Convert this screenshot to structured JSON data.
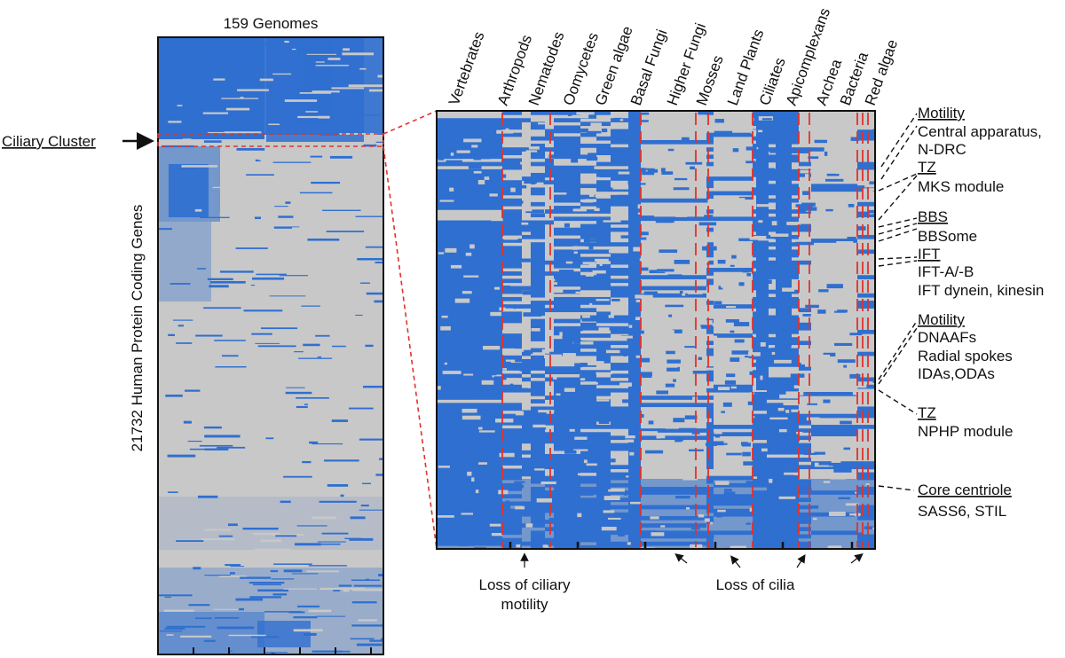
{
  "colors": {
    "present": "#2f6fd0",
    "absent": "#c8c8c8",
    "dash": "#e0322c",
    "text": "#111111"
  },
  "left_heatmap": {
    "title": "159 Genomes",
    "y_label": "21732 Human Protein Coding Genes",
    "cluster_label": "Ciliary Cluster"
  },
  "clades": [
    "Vertebrates",
    "Arthropods",
    "Nematodes",
    "Oomycetes",
    "Green algae",
    "Basal Fungi",
    "Higher Fungi",
    "Mosses",
    "Land Plants",
    "Ciliates",
    "Apicomplexans",
    "Archea",
    "Bacteria",
    "Red algae"
  ],
  "annotations": [
    {
      "header": "Motility",
      "lines": [
        "Central apparatus,",
        "N-DRC"
      ]
    },
    {
      "header": "TZ",
      "lines": [
        "MKS module"
      ]
    },
    {
      "header": "BBS",
      "lines": [
        "BBSome"
      ]
    },
    {
      "header": "IFT",
      "lines": [
        "IFT-A/-B",
        "IFT dynein, kinesin"
      ]
    },
    {
      "header": "Motility",
      "lines": [
        "DNAAFs",
        "Radial spokes",
        "IDAs,ODAs"
      ]
    },
    {
      "header": "TZ",
      "lines": [
        "NPHP module"
      ]
    },
    {
      "header": "Core centriole",
      "lines": [
        "SASS6, STIL"
      ]
    }
  ],
  "bottom_notes": {
    "motility_loss": [
      "Loss of ciliary",
      "motility"
    ],
    "cilia_loss": "Loss of cilia"
  }
}
